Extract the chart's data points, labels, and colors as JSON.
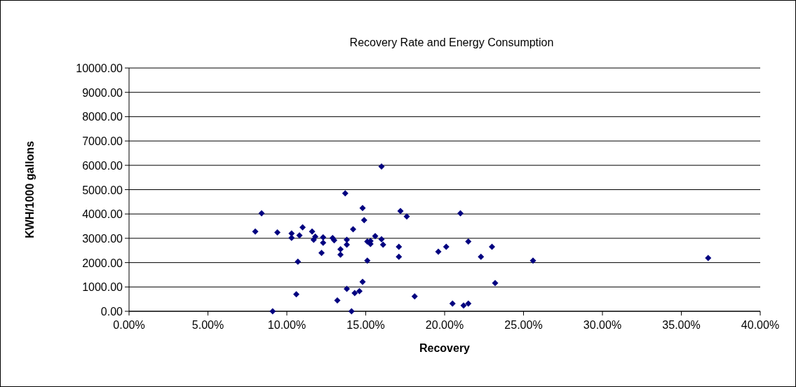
{
  "chart_data": {
    "type": "scatter",
    "title": "Recovery Rate and Energy Consumption",
    "xlabel": "Recovery",
    "ylabel": "KWH/1000 gallons",
    "xlim": [
      0,
      40
    ],
    "ylim": [
      0,
      10000
    ],
    "xticks": [
      {
        "value": 0,
        "label": "0.00%"
      },
      {
        "value": 5,
        "label": "5.00%"
      },
      {
        "value": 10,
        "label": "10.00%"
      },
      {
        "value": 15,
        "label": "15.00%"
      },
      {
        "value": 20,
        "label": "20.00%"
      },
      {
        "value": 25,
        "label": "25.00%"
      },
      {
        "value": 30,
        "label": "30.00%"
      },
      {
        "value": 35,
        "label": "35.00%"
      },
      {
        "value": 40,
        "label": "40.00%"
      }
    ],
    "yticks": [
      {
        "value": 0,
        "label": "0.00"
      },
      {
        "value": 1000,
        "label": "1000.00"
      },
      {
        "value": 2000,
        "label": "2000.00"
      },
      {
        "value": 3000,
        "label": "3000.00"
      },
      {
        "value": 4000,
        "label": "4000.00"
      },
      {
        "value": 5000,
        "label": "5000.00"
      },
      {
        "value": 6000,
        "label": "6000.00"
      },
      {
        "value": 7000,
        "label": "7000.00"
      },
      {
        "value": 8000,
        "label": "8000.00"
      },
      {
        "value": 9000,
        "label": "9000.00"
      },
      {
        "value": 10000,
        "label": "10000.00"
      }
    ],
    "grid": "y",
    "marker": "diamond",
    "series": [
      {
        "color": "#000080",
        "x": [
          16.0,
          13.7,
          14.8,
          14.9,
          8.4,
          8.0,
          9.4,
          10.3,
          10.3,
          10.8,
          11.0,
          11.6,
          11.7,
          11.8,
          12.3,
          12.3,
          12.2,
          10.7,
          10.6,
          9.1,
          12.9,
          13.0,
          13.4,
          13.4,
          13.8,
          13.8,
          14.2,
          13.2,
          13.8,
          14.3,
          14.6,
          14.8,
          14.1,
          15.1,
          15.1,
          15.3,
          15.3,
          15.6,
          16.0,
          16.1,
          17.2,
          17.6,
          17.1,
          17.1,
          18.1,
          19.6,
          20.1,
          21.0,
          21.5,
          20.5,
          21.2,
          21.5,
          22.3,
          23.0,
          23.2,
          25.6,
          36.7
        ],
        "values": [
          5950,
          4850,
          4240,
          3750,
          4030,
          3280,
          3240,
          3200,
          3020,
          3120,
          3450,
          3280,
          2940,
          3070,
          3040,
          2820,
          2400,
          2040,
          700,
          0,
          3010,
          2920,
          2550,
          2330,
          2940,
          2740,
          3370,
          450,
          920,
          750,
          830,
          1210,
          0,
          2870,
          2080,
          2890,
          2770,
          3090,
          2960,
          2740,
          4120,
          3900,
          2650,
          2240,
          610,
          2450,
          2650,
          4030,
          2870,
          320,
          240,
          320,
          2240,
          2650,
          1160,
          2080,
          2190
        ]
      }
    ]
  }
}
